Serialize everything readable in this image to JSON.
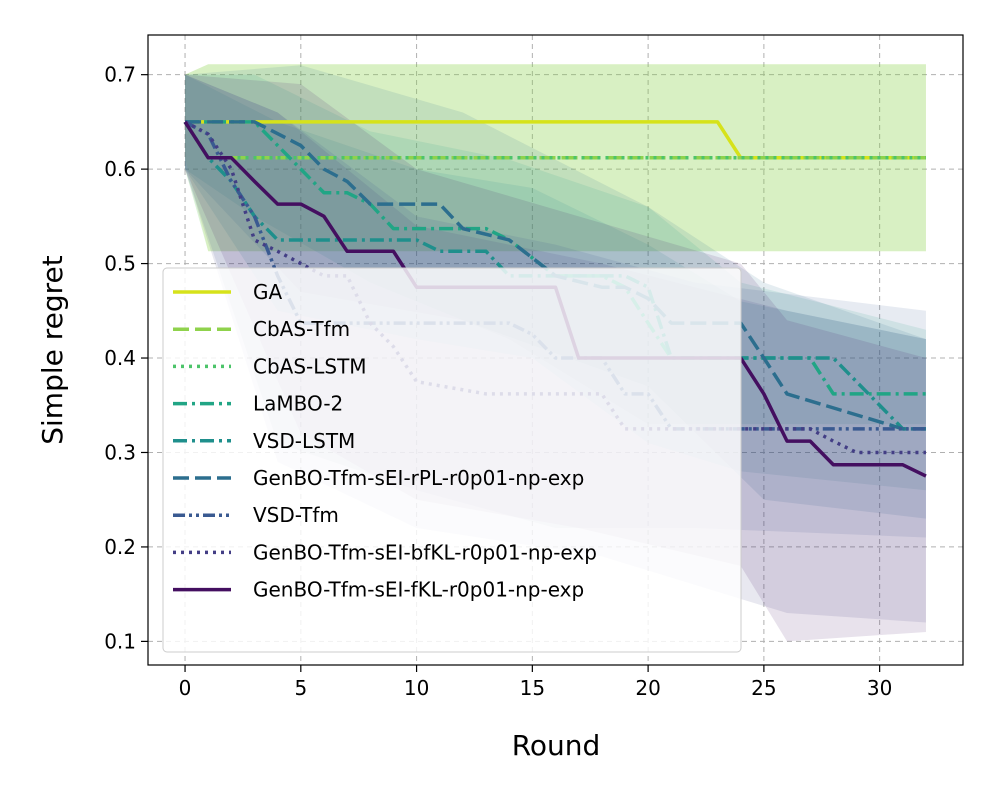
{
  "chart_data": {
    "type": "line",
    "title": "",
    "xlabel": "Round",
    "ylabel": "Simple regret",
    "xlim": [
      -1.6,
      33.6
    ],
    "ylim": [
      0.075,
      0.742
    ],
    "xticks": [
      0,
      5,
      10,
      15,
      20,
      25,
      30
    ],
    "yticks": [
      0.1,
      0.2,
      0.3,
      0.4,
      0.5,
      0.6,
      0.7
    ],
    "xtick_labels": [
      "0",
      "5",
      "10",
      "15",
      "20",
      "25",
      "30"
    ],
    "ytick_labels": [
      "0.1",
      "0.2",
      "0.3",
      "0.4",
      "0.5",
      "0.6",
      "0.7"
    ],
    "grid": true,
    "legend_position": "lower-left",
    "series": [
      {
        "name": "GA",
        "color": "#d6e21a",
        "dash": "solid",
        "x": [
          0,
          23,
          24,
          32
        ],
        "y": [
          0.65,
          0.65,
          0.612,
          0.612
        ],
        "band": {
          "x": [
            0,
            1,
            32
          ],
          "lower": [
            0.612,
            0.513,
            0.513
          ],
          "upper": [
            0.7,
            0.711,
            0.711
          ]
        }
      },
      {
        "name": "CbAS-Tfm",
        "color": "#8fd24c",
        "dash": "dashed",
        "x": [
          0,
          1,
          32
        ],
        "y": [
          0.65,
          0.612,
          0.612
        ],
        "band": {
          "x": [
            0,
            1,
            32
          ],
          "lower": [
            0.6,
            0.513,
            0.513
          ],
          "upper": [
            0.7,
            0.711,
            0.711
          ]
        }
      },
      {
        "name": "CbAS-LSTM",
        "color": "#4cc46a",
        "dash": "dotted",
        "x": [
          0,
          1,
          32
        ],
        "y": [
          0.65,
          0.612,
          0.612
        ],
        "band": {
          "x": [
            0,
            1,
            32
          ],
          "lower": [
            0.6,
            0.513,
            0.513
          ],
          "upper": [
            0.7,
            0.711,
            0.711
          ]
        }
      },
      {
        "name": "LaMBO-2",
        "color": "#21a585",
        "dash": "dashdot",
        "x": [
          0,
          3,
          5,
          6,
          7,
          8,
          9,
          10,
          13,
          14,
          16,
          18,
          19,
          20,
          21,
          27,
          28,
          32
        ],
        "y": [
          0.65,
          0.65,
          0.6,
          0.575,
          0.575,
          0.563,
          0.537,
          0.537,
          0.537,
          0.525,
          0.487,
          0.487,
          0.475,
          0.437,
          0.4,
          0.4,
          0.362,
          0.362
        ],
        "band": {
          "x": [
            0,
            3,
            8,
            14,
            20,
            24,
            32
          ],
          "lower": [
            0.6,
            0.55,
            0.48,
            0.42,
            0.33,
            0.33,
            0.33
          ],
          "upper": [
            0.7,
            0.7,
            0.64,
            0.61,
            0.56,
            0.48,
            0.43
          ]
        }
      },
      {
        "name": "VSD-LSTM",
        "color": "#1f8f8c",
        "dash": "dashdot",
        "x": [
          0,
          1,
          2,
          3,
          4,
          6,
          8,
          9,
          10,
          11,
          13,
          14,
          15,
          19,
          20,
          21,
          24,
          28,
          29,
          30,
          31,
          32
        ],
        "y": [
          0.65,
          0.612,
          0.587,
          0.55,
          0.525,
          0.525,
          0.525,
          0.525,
          0.525,
          0.513,
          0.513,
          0.487,
          0.487,
          0.487,
          0.475,
          0.4,
          0.4,
          0.4,
          0.375,
          0.35,
          0.325,
          0.325
        ],
        "band": {
          "x": [
            0,
            4,
            10,
            15,
            20,
            24,
            32
          ],
          "lower": [
            0.6,
            0.45,
            0.42,
            0.4,
            0.31,
            0.28,
            0.26
          ],
          "upper": [
            0.7,
            0.65,
            0.6,
            0.58,
            0.52,
            0.46,
            0.42
          ]
        }
      },
      {
        "name": "GenBO-Tfm-sEI-rPL-r0p01-np-exp",
        "color": "#2c6e8e",
        "dash": "dashed",
        "x": [
          0,
          3,
          5,
          6,
          7,
          8,
          11,
          12,
          14,
          16,
          18,
          19,
          20,
          21,
          22,
          24,
          25,
          26,
          31,
          32
        ],
        "y": [
          0.65,
          0.65,
          0.625,
          0.6,
          0.587,
          0.563,
          0.563,
          0.537,
          0.525,
          0.487,
          0.475,
          0.475,
          0.463,
          0.437,
          0.437,
          0.437,
          0.4,
          0.362,
          0.325,
          0.325
        ],
        "band": {
          "x": [
            0,
            5,
            12,
            20,
            25,
            32
          ],
          "lower": [
            0.6,
            0.47,
            0.44,
            0.37,
            0.25,
            0.23
          ],
          "upper": [
            0.7,
            0.71,
            0.66,
            0.56,
            0.48,
            0.42
          ]
        }
      },
      {
        "name": "VSD-Tfm",
        "color": "#3a5a91",
        "dash": "dashdotdot",
        "x": [
          0,
          1,
          2,
          3,
          4,
          5,
          7,
          10,
          14,
          15,
          16,
          17,
          18,
          19,
          20,
          21,
          22,
          26,
          32
        ],
        "y": [
          0.65,
          0.637,
          0.587,
          0.55,
          0.487,
          0.437,
          0.437,
          0.437,
          0.437,
          0.425,
          0.4,
          0.4,
          0.4,
          0.362,
          0.362,
          0.325,
          0.325,
          0.325,
          0.325
        ],
        "band": {
          "x": [
            0,
            4,
            10,
            16,
            22,
            32
          ],
          "lower": [
            0.6,
            0.31,
            0.26,
            0.22,
            0.22,
            0.21
          ],
          "upper": [
            0.7,
            0.66,
            0.55,
            0.52,
            0.48,
            0.45
          ]
        }
      },
      {
        "name": "GenBO-Tfm-sEI-bfKL-r0p01-np-exp",
        "color": "#433e85",
        "dash": "dotted",
        "x": [
          0,
          1,
          2,
          3,
          4,
          5,
          6,
          7,
          8,
          9,
          10,
          13,
          18,
          19,
          27,
          28,
          29,
          32
        ],
        "y": [
          0.65,
          0.637,
          0.6,
          0.525,
          0.513,
          0.5,
          0.487,
          0.487,
          0.437,
          0.412,
          0.375,
          0.362,
          0.362,
          0.325,
          0.325,
          0.312,
          0.3,
          0.3
        ],
        "band": {
          "x": [
            0,
            4,
            10,
            18,
            26,
            32
          ],
          "lower": [
            0.6,
            0.29,
            0.22,
            0.19,
            0.13,
            0.12
          ],
          "upper": [
            0.7,
            0.66,
            0.54,
            0.5,
            0.45,
            0.42
          ]
        }
      },
      {
        "name": "GenBO-Tfm-sEI-fKL-r0p01-np-exp",
        "color": "#440f60",
        "dash": "solid",
        "x": [
          0,
          1,
          2,
          3,
          4,
          5,
          6,
          7,
          8,
          9,
          10,
          16,
          17,
          24,
          25,
          26,
          27,
          28,
          29,
          31,
          32
        ],
        "y": [
          0.65,
          0.612,
          0.612,
          0.587,
          0.563,
          0.563,
          0.55,
          0.513,
          0.513,
          0.513,
          0.475,
          0.475,
          0.4,
          0.4,
          0.362,
          0.312,
          0.312,
          0.287,
          0.287,
          0.287,
          0.275
        ],
        "band": {
          "x": [
            0,
            5,
            10,
            17,
            24,
            26,
            32
          ],
          "lower": [
            0.6,
            0.32,
            0.25,
            0.22,
            0.18,
            0.1,
            0.11
          ],
          "upper": [
            0.7,
            0.69,
            0.6,
            0.55,
            0.5,
            0.44,
            0.4
          ]
        }
      }
    ]
  }
}
